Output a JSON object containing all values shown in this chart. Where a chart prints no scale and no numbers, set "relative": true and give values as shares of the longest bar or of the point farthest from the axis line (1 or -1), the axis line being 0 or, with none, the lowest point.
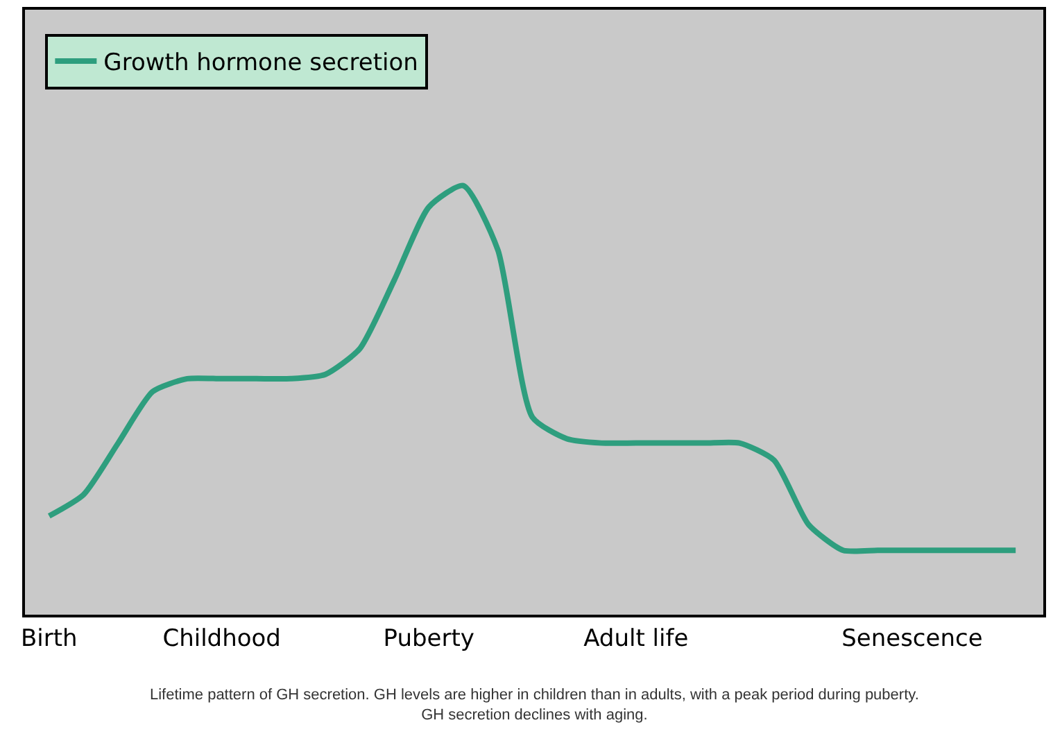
{
  "chart_data": {
    "type": "line",
    "relative": true,
    "categories": [
      "Birth",
      null,
      null,
      null,
      null,
      "Childhood",
      null,
      null,
      null,
      null,
      null,
      "Puberty",
      null,
      null,
      null,
      null,
      null,
      "Adult life",
      null,
      null,
      null,
      null,
      null,
      null,
      null,
      "Senescence",
      null,
      null,
      null
    ],
    "series": [
      {
        "name": "Growth hormone secretion",
        "color": "#2e9e7e",
        "values": [
          0.23,
          0.28,
          0.4,
          0.52,
          0.55,
          0.55,
          0.55,
          0.55,
          0.56,
          0.62,
          0.78,
          0.95,
          1,
          0.85,
          0.46,
          0.41,
          0.4,
          0.4,
          0.4,
          0.4,
          0.4,
          0.36,
          0.21,
          0.15,
          0.15,
          0.15,
          0.15,
          0.15,
          0.15
        ]
      }
    ],
    "legend": "top left",
    "grid": false,
    "marker": "none",
    "line_style": "solid",
    "annotations": [
      "Lifetime pattern of GH secretion. GH levels are higher in children than in adults, with a peak period during puberty. GH secretion declines with aging."
    ]
  }
}
